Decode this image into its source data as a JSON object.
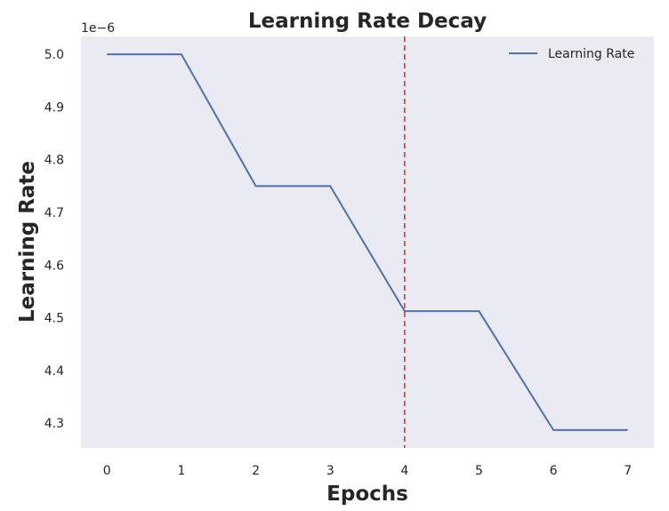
{
  "chart_data": {
    "type": "line",
    "title": "Learning Rate Decay",
    "xlabel": "Epochs",
    "ylabel": "Learning Rate",
    "y_offset_label": "1e−6",
    "x": [
      0,
      1,
      2,
      3,
      4,
      5,
      6,
      7
    ],
    "x_ticks": [
      "0",
      "1",
      "2",
      "3",
      "4",
      "5",
      "6",
      "7"
    ],
    "y_ticks": [
      "4.3",
      "4.4",
      "4.5",
      "4.6",
      "4.7",
      "4.8",
      "4.9",
      "5.0"
    ],
    "y_tick_values": [
      4.3,
      4.4,
      4.5,
      4.6,
      4.7,
      4.8,
      4.9,
      5.0
    ],
    "xlim": [
      -0.35,
      7.35
    ],
    "ylim": [
      4.253,
      5.034
    ],
    "grid": false,
    "legend_position": "top-right",
    "series": [
      {
        "name": "Learning Rate",
        "values": [
          5.0,
          5.0,
          4.75,
          4.75,
          4.5125,
          4.5125,
          4.286875,
          4.286875
        ],
        "color": "#4c72b0"
      }
    ],
    "vertical_line": {
      "x": 4,
      "style": "dashed",
      "color": "#c44e52"
    },
    "background_color": "#eaeaf2"
  }
}
